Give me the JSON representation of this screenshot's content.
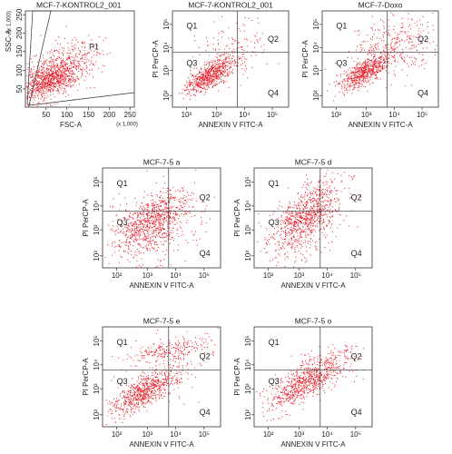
{
  "panels": [
    {
      "title": "MCF-7-KONTROL2_001",
      "x_label": "FSC-A",
      "y_label": "SSC-A",
      "x_unit": "(x 1,000)",
      "y_unit": "(x 1,000)",
      "x_ticks": [
        "50",
        "100",
        "150",
        "200",
        "250"
      ],
      "y_ticks": [
        "50",
        "100",
        "150",
        "200",
        "250"
      ],
      "gate": "P1"
    },
    {
      "title": "MCF-7-KONTROL2_001",
      "x_label": "ANNEXIN V FITC-A",
      "y_label": "PI PerCP-A",
      "x_ticks": [
        "10²",
        "10³",
        "10⁴",
        "10⁵"
      ],
      "y_ticks": [
        "10²",
        "10³",
        "10⁴",
        "10⁵"
      ],
      "quadrants": [
        "Q1",
        "Q2",
        "Q3",
        "Q4"
      ]
    },
    {
      "title": "MCF-7-Doxo",
      "x_label": "ANNEXIN V FITC-A",
      "y_label": "PI PerCP-A",
      "x_ticks": [
        "10²",
        "10³",
        "10⁴",
        "10⁵"
      ],
      "y_ticks": [
        "10²",
        "10³",
        "10⁴",
        "10⁵"
      ],
      "quadrants": [
        "Q1",
        "Q2",
        "Q3",
        "Q4"
      ]
    },
    {
      "title": "MCF-7-5 a",
      "x_label": "ANNEXIN V FITC-A",
      "y_label": "PI PerCP-A",
      "x_ticks": [
        "10²",
        "10³",
        "10⁴",
        "10⁵"
      ],
      "y_ticks": [
        "10²",
        "10³",
        "10⁴",
        "10⁵"
      ],
      "quadrants": [
        "Q1",
        "Q2",
        "Q3",
        "Q4"
      ]
    },
    {
      "title": "MCF-7-5 d",
      "x_label": "ANNEXIN V FITC-A",
      "y_label": "PI PerCP-A",
      "x_ticks": [
        "10²",
        "10³",
        "10⁴",
        "10⁵"
      ],
      "y_ticks": [
        "10²",
        "10³",
        "10⁴",
        "10⁵"
      ],
      "quadrants": [
        "Q1",
        "Q2",
        "Q3",
        "Q4"
      ]
    },
    {
      "title": "MCF-7-5 e",
      "x_label": "ANNEXIN V FITC-A",
      "y_label": "PI PerCP-A",
      "x_ticks": [
        "10²",
        "10³",
        "10⁴",
        "10⁵"
      ],
      "y_ticks": [
        "10²",
        "10³",
        "10⁴",
        "10⁵"
      ],
      "quadrants": [
        "Q1",
        "Q2",
        "Q3",
        "Q4"
      ]
    },
    {
      "title": "MCF-7-5 o",
      "x_label": "ANNEXIN V FITC-A",
      "y_label": "PI PerCP-A",
      "x_ticks": [
        "10²",
        "10³",
        "10⁴",
        "10⁵"
      ],
      "y_ticks": [
        "10²",
        "10³",
        "10⁴",
        "10⁵"
      ],
      "quadrants": [
        "Q1",
        "Q2",
        "Q3",
        "Q4"
      ]
    }
  ]
}
